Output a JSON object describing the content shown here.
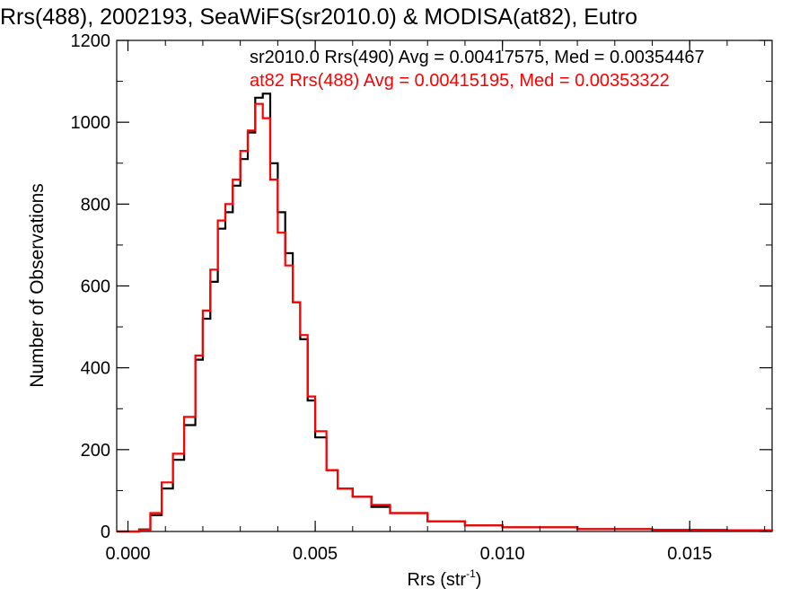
{
  "chart_data": {
    "type": "line",
    "title": "Rrs(488), 2002193, SeaWiFS(sr2010.0) & MODISA(at82), Eutro",
    "xlabel_main": "Rrs (str",
    "xlabel_sup": "-1",
    "xlabel_close": ")",
    "ylabel": "Number of Observations",
    "xlim": [
      -0.0003,
      0.0172
    ],
    "ylim": [
      0,
      1200
    ],
    "x_ticks": [
      0.0,
      0.005,
      0.01,
      0.015
    ],
    "x_tick_labels": [
      "0.000",
      "0.005",
      "0.010",
      "0.015"
    ],
    "y_ticks": [
      0,
      200,
      400,
      600,
      800,
      1000,
      1200
    ],
    "y_tick_labels": [
      "0",
      "200",
      "400",
      "600",
      "800",
      "1000",
      "1200"
    ],
    "series": [
      {
        "name": "sr2010.0 Rrs(490)",
        "color": "#000000",
        "legend": "sr2010.0 Rrs(490) Avg = 0.00417575, Med = 0.00354467",
        "x": [
          0.0003,
          0.0006,
          0.0009,
          0.0012,
          0.0015,
          0.0018,
          0.002,
          0.0022,
          0.0024,
          0.0026,
          0.0028,
          0.003,
          0.0032,
          0.0034,
          0.0036,
          0.0038,
          0.004,
          0.0042,
          0.0044,
          0.0046,
          0.0048,
          0.005,
          0.0053,
          0.0056,
          0.006,
          0.0065,
          0.007,
          0.008,
          0.009,
          0.01,
          0.012,
          0.014,
          0.016,
          0.0172
        ],
        "y": [
          5,
          40,
          105,
          175,
          260,
          420,
          520,
          610,
          740,
          780,
          845,
          910,
          975,
          1060,
          1070,
          900,
          780,
          680,
          560,
          470,
          320,
          230,
          150,
          105,
          85,
          60,
          45,
          25,
          15,
          10,
          6,
          4,
          3,
          2
        ]
      },
      {
        "name": "at82 Rrs(488)",
        "color": "#ff0000",
        "legend": "at82 Rrs(488) Avg = 0.00415195, Med = 0.00353322",
        "x": [
          0.0003,
          0.0006,
          0.0009,
          0.0012,
          0.0015,
          0.0018,
          0.002,
          0.0022,
          0.0024,
          0.0026,
          0.0028,
          0.003,
          0.0032,
          0.0034,
          0.0036,
          0.0038,
          0.004,
          0.0042,
          0.0044,
          0.0046,
          0.0048,
          0.005,
          0.0053,
          0.0056,
          0.006,
          0.0065,
          0.007,
          0.008,
          0.009,
          0.01,
          0.012,
          0.014,
          0.016,
          0.0172
        ],
        "y": [
          4,
          45,
          120,
          190,
          280,
          430,
          540,
          640,
          760,
          800,
          860,
          930,
          980,
          1045,
          1010,
          860,
          730,
          650,
          560,
          480,
          330,
          245,
          150,
          105,
          85,
          65,
          45,
          25,
          15,
          10,
          6,
          4,
          3,
          2
        ]
      }
    ]
  }
}
